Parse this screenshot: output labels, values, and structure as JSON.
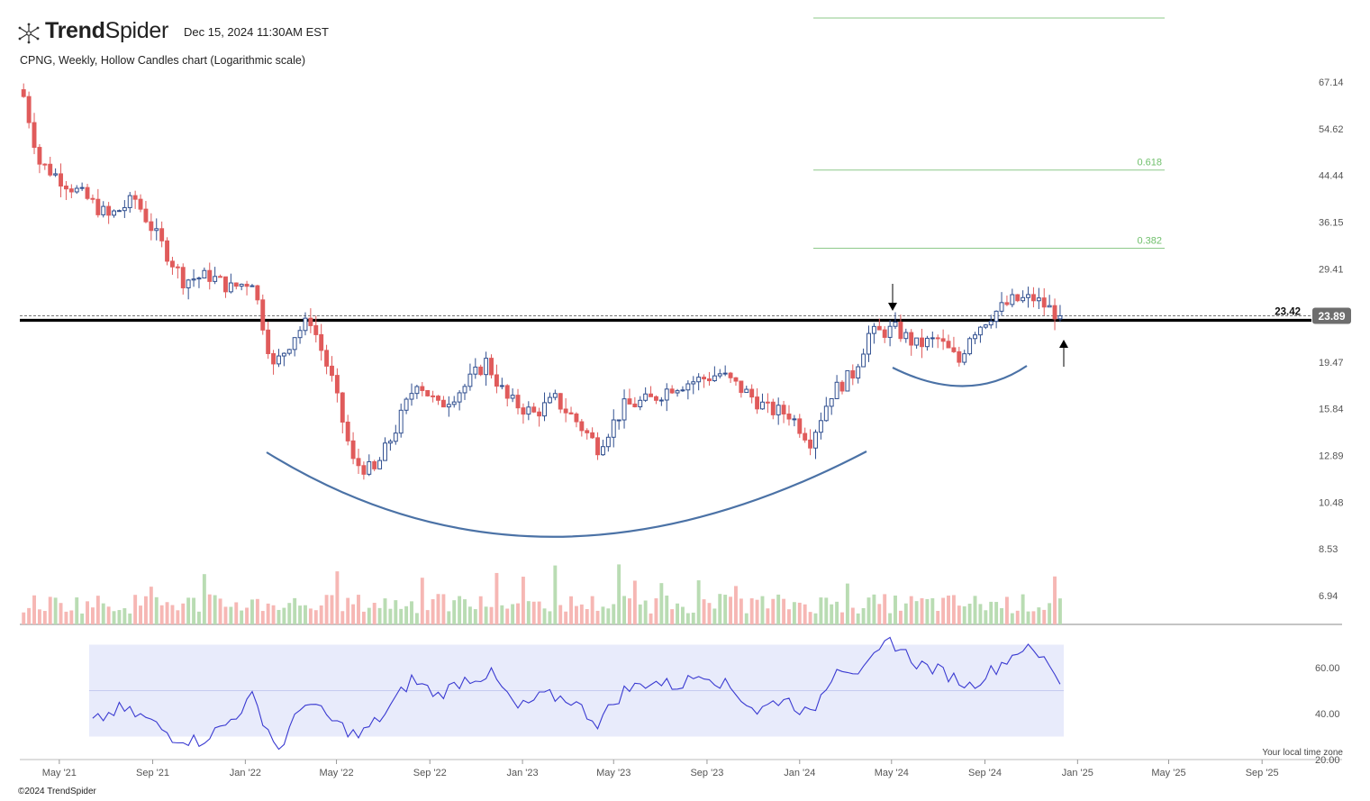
{
  "header": {
    "brand_bold": "Trend",
    "brand_light": "Spider",
    "timestamp": "Dec 15, 2024 11:30AM EST",
    "chart_title": "CPNG, Weekly, Hollow Candles chart (Logarithmic scale)",
    "copyright": "©2024 TrendSpider",
    "timezone_note": "Your local time zone",
    "logo_icon": "trendspider-logo-icon"
  },
  "colors": {
    "up": "#2f4e8f",
    "down": "#e05b5b",
    "vol_up": "#b9dcb3",
    "vol_down": "#f6b7b4",
    "rsi_line": "#3a3ad1",
    "rsi_band": "#e8ebfb",
    "fib_line": "#8dc98a",
    "fib_label": "#6fbf6b",
    "support_line": "#000000",
    "curve": "#4b72a6",
    "price_badge": "#6e6e6e"
  },
  "chart_data": [
    {
      "type": "candlestick",
      "symbol": "CPNG",
      "interval": "Weekly",
      "style": "Hollow Candles",
      "scale": "log",
      "ylim": [
        5.5,
        75
      ],
      "y_ticks": [
        "67.14",
        "54.62",
        "44.44",
        "36.15",
        "29.41",
        "23.89",
        "19.47",
        "15.84",
        "12.89",
        "10.48",
        "8.53",
        "6.94"
      ],
      "x_ticks": [
        "May '21",
        "Sep '21",
        "Jan '22",
        "May '22",
        "Sep '22",
        "Jan '23",
        "May '23",
        "Sep '23",
        "Jan '24",
        "May '24",
        "Sep '24",
        "Jan '25",
        "May '25",
        "Sep '25"
      ],
      "last_price": "23.89",
      "support_level": "23.42",
      "fib_levels": [
        {
          "label": "",
          "value": 75
        },
        {
          "label": "0.618",
          "value": 45.5
        },
        {
          "label": "0.382",
          "value": 32.2
        }
      ],
      "price_path": [
        {
          "date": "2021-03-15",
          "close": 63
        },
        {
          "date": "2021-04-05",
          "close": 47
        },
        {
          "date": "2021-05-10",
          "close": 43
        },
        {
          "date": "2021-06-07",
          "close": 40
        },
        {
          "date": "2021-07-05",
          "close": 37
        },
        {
          "date": "2021-08-09",
          "close": 40
        },
        {
          "date": "2021-09-06",
          "close": 34
        },
        {
          "date": "2021-10-11",
          "close": 28
        },
        {
          "date": "2021-11-15",
          "close": 28.5
        },
        {
          "date": "2021-12-13",
          "close": 27
        },
        {
          "date": "2022-01-10",
          "close": 28
        },
        {
          "date": "2022-02-07",
          "close": 19
        },
        {
          "date": "2022-03-07",
          "close": 22
        },
        {
          "date": "2022-03-28",
          "close": 23.5
        },
        {
          "date": "2022-04-25",
          "close": 18
        },
        {
          "date": "2022-05-23",
          "close": 12.5
        },
        {
          "date": "2022-06-20",
          "close": 12
        },
        {
          "date": "2022-07-18",
          "close": 14.5
        },
        {
          "date": "2022-08-15",
          "close": 18
        },
        {
          "date": "2022-09-12",
          "close": 16
        },
        {
          "date": "2022-10-17",
          "close": 17.5
        },
        {
          "date": "2022-11-14",
          "close": 19.5
        },
        {
          "date": "2022-12-12",
          "close": 16.5
        },
        {
          "date": "2023-01-16",
          "close": 15.5
        },
        {
          "date": "2023-02-13",
          "close": 16.5
        },
        {
          "date": "2023-03-13",
          "close": 15
        },
        {
          "date": "2023-04-10",
          "close": 13.4
        },
        {
          "date": "2023-05-15",
          "close": 16
        },
        {
          "date": "2023-06-19",
          "close": 16.5
        },
        {
          "date": "2023-07-17",
          "close": 17.5
        },
        {
          "date": "2023-08-21",
          "close": 18
        },
        {
          "date": "2023-09-18",
          "close": 18.5
        },
        {
          "date": "2023-10-23",
          "close": 17
        },
        {
          "date": "2023-11-20",
          "close": 15.8
        },
        {
          "date": "2023-12-18",
          "close": 15.5
        },
        {
          "date": "2024-01-15",
          "close": 13.8
        },
        {
          "date": "2024-02-12",
          "close": 17
        },
        {
          "date": "2024-03-11",
          "close": 18.5
        },
        {
          "date": "2024-04-01",
          "close": 22
        },
        {
          "date": "2024-05-06",
          "close": 22.5
        },
        {
          "date": "2024-06-03",
          "close": 21
        },
        {
          "date": "2024-07-01",
          "close": 21.5
        },
        {
          "date": "2024-07-29",
          "close": 19.5
        },
        {
          "date": "2024-08-12",
          "close": 22
        },
        {
          "date": "2024-09-09",
          "close": 24
        },
        {
          "date": "2024-10-07",
          "close": 25.5
        },
        {
          "date": "2024-11-04",
          "close": 25.8
        },
        {
          "date": "2024-12-09",
          "close": 23.89
        }
      ],
      "rsi": {
        "y_ticks": [
          "60.00",
          "40.00",
          "20.00"
        ],
        "band": [
          30,
          70
        ],
        "midline": 50,
        "ylim": [
          20,
          75
        ],
        "path": [
          {
            "date": "2021-06-14",
            "value": 36
          },
          {
            "date": "2021-07-19",
            "value": 42
          },
          {
            "date": "2021-08-23",
            "value": 38
          },
          {
            "date": "2021-09-27",
            "value": 30
          },
          {
            "date": "2021-11-01",
            "value": 28
          },
          {
            "date": "2021-12-06",
            "value": 35
          },
          {
            "date": "2022-01-10",
            "value": 47
          },
          {
            "date": "2022-02-14",
            "value": 24
          },
          {
            "date": "2022-03-21",
            "value": 46
          },
          {
            "date": "2022-04-25",
            "value": 37
          },
          {
            "date": "2022-05-30",
            "value": 30
          },
          {
            "date": "2022-07-04",
            "value": 40
          },
          {
            "date": "2022-08-08",
            "value": 55
          },
          {
            "date": "2022-09-12",
            "value": 48
          },
          {
            "date": "2022-10-17",
            "value": 55
          },
          {
            "date": "2022-11-21",
            "value": 57
          },
          {
            "date": "2022-12-26",
            "value": 42
          },
          {
            "date": "2023-01-30",
            "value": 48
          },
          {
            "date": "2023-03-06",
            "value": 46
          },
          {
            "date": "2023-04-10",
            "value": 36
          },
          {
            "date": "2023-05-15",
            "value": 50
          },
          {
            "date": "2023-06-19",
            "value": 54
          },
          {
            "date": "2023-07-24",
            "value": 52
          },
          {
            "date": "2023-08-28",
            "value": 58
          },
          {
            "date": "2023-10-02",
            "value": 51
          },
          {
            "date": "2023-11-06",
            "value": 41
          },
          {
            "date": "2023-12-11",
            "value": 47
          },
          {
            "date": "2024-01-15",
            "value": 39
          },
          {
            "date": "2024-02-19",
            "value": 61
          },
          {
            "date": "2024-03-25",
            "value": 58
          },
          {
            "date": "2024-04-29",
            "value": 72
          },
          {
            "date": "2024-06-03",
            "value": 62
          },
          {
            "date": "2024-07-08",
            "value": 58
          },
          {
            "date": "2024-08-12",
            "value": 52
          },
          {
            "date": "2024-09-16",
            "value": 60
          },
          {
            "date": "2024-10-21",
            "value": 69
          },
          {
            "date": "2024-11-25",
            "value": 62
          },
          {
            "date": "2024-12-09",
            "value": 54
          }
        ]
      }
    }
  ]
}
